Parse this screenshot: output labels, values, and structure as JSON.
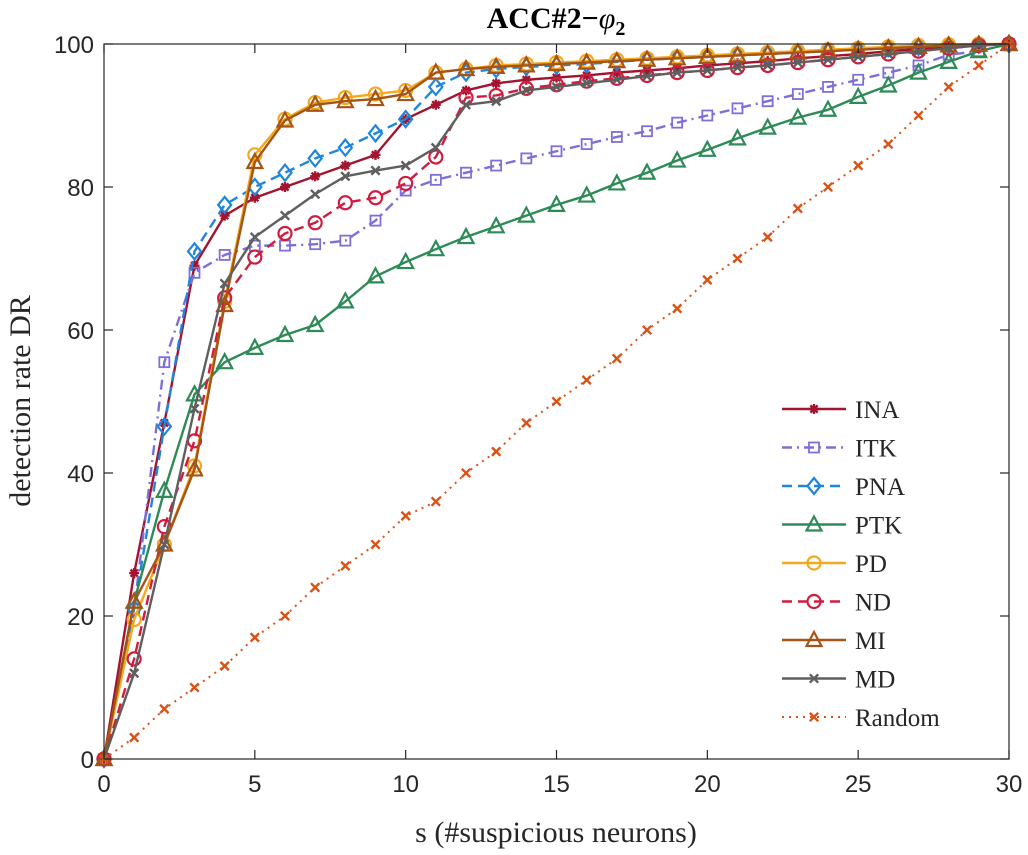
{
  "chart_data": {
    "type": "line",
    "title": "ACC#2−",
    "title_symbol": "φ",
    "title_subscript": "2",
    "xlabel": "s (#suspicious neurons)",
    "ylabel": "detection rate DR",
    "xlim": [
      0,
      30
    ],
    "ylim": [
      0,
      100
    ],
    "xticks": [
      0,
      5,
      10,
      15,
      20,
      25,
      30
    ],
    "yticks": [
      0,
      20,
      40,
      60,
      80,
      100
    ],
    "grid": false,
    "legend_position": "bottom-right",
    "x": [
      0,
      1,
      2,
      3,
      4,
      5,
      6,
      7,
      8,
      9,
      10,
      11,
      12,
      13,
      14,
      15,
      16,
      17,
      18,
      19,
      20,
      21,
      22,
      23,
      24,
      25,
      26,
      27,
      28,
      29,
      30
    ],
    "series": [
      {
        "name": "INA",
        "color": "#A2142F",
        "dash": "solid",
        "marker": "asterisk",
        "values": [
          0,
          26,
          47,
          69,
          76,
          78.5,
          80,
          81.5,
          83,
          84.5,
          89.5,
          91.5,
          93.5,
          94.5,
          95,
          95.3,
          95.6,
          96,
          96.3,
          96.6,
          97,
          97.3,
          97.6,
          98,
          98.3,
          98.6,
          99,
          99.3,
          99.6,
          99.8,
          100
        ]
      },
      {
        "name": "ITK",
        "color": "#7E6FD8",
        "dash": "dashdot",
        "marker": "square",
        "values": [
          0,
          21,
          55.5,
          68,
          70.5,
          71.8,
          71.8,
          72,
          72.5,
          75.3,
          79.5,
          81,
          82,
          83,
          84,
          85,
          86,
          87,
          87.8,
          89,
          90,
          91,
          92,
          93,
          94,
          95,
          96,
          97,
          98.5,
          99,
          100
        ]
      },
      {
        "name": "PNA",
        "color": "#1F86DC",
        "dash": "dash",
        "marker": "diamond",
        "values": [
          0,
          21,
          46.5,
          71,
          77.5,
          80,
          82,
          84,
          85.5,
          87.5,
          89.5,
          94,
          96,
          96.5,
          96.8,
          97,
          97.2,
          97.5,
          97.8,
          98,
          98.2,
          98.4,
          98.6,
          98.8,
          99,
          99.2,
          99.4,
          99.6,
          99.8,
          99.9,
          100
        ]
      },
      {
        "name": "PTK",
        "color": "#2E8B57",
        "dash": "solid",
        "marker": "triangle",
        "values": [
          0,
          22,
          37.5,
          51,
          55.5,
          57.5,
          59.3,
          60.7,
          64,
          67.5,
          69.5,
          71.3,
          73,
          74.5,
          76,
          77.5,
          78.8,
          80.5,
          82,
          83.7,
          85.2,
          86.8,
          88.3,
          89.7,
          90.8,
          92.6,
          94.2,
          96,
          97.5,
          99,
          100
        ]
      },
      {
        "name": "PD",
        "color": "#F4A81D",
        "dash": "solid",
        "marker": "circle",
        "values": [
          0,
          19.5,
          30,
          41,
          64,
          84.5,
          89.5,
          91.8,
          92.5,
          93,
          93.5,
          96,
          96.5,
          97,
          97.2,
          97.4,
          97.6,
          97.8,
          98,
          98.2,
          98.4,
          98.6,
          98.8,
          99,
          99.2,
          99.4,
          99.6,
          99.8,
          99.9,
          100,
          100
        ]
      },
      {
        "name": "ND",
        "color": "#D01C3F",
        "dash": "dash",
        "marker": "circle",
        "values": [
          0,
          14,
          32.5,
          44.5,
          64.5,
          70.2,
          73.5,
          75,
          77.8,
          78.5,
          80.5,
          84.2,
          92.5,
          92.8,
          93.8,
          94.3,
          94.8,
          95.2,
          95.6,
          96,
          96.3,
          96.7,
          97,
          97.4,
          97.8,
          98.2,
          98.6,
          99,
          99.4,
          99.8,
          100
        ]
      },
      {
        "name": "MI",
        "color": "#A65416",
        "dash": "solid",
        "marker": "triangle",
        "values": [
          0,
          22,
          30,
          40.5,
          63.5,
          83.5,
          89.3,
          91.5,
          92,
          92.3,
          93,
          96,
          96.5,
          96.8,
          97,
          97.2,
          97.4,
          97.6,
          97.8,
          98,
          98.2,
          98.4,
          98.6,
          98.8,
          99,
          99.2,
          99.4,
          99.6,
          99.8,
          99.9,
          100
        ]
      },
      {
        "name": "MD",
        "color": "#5F5F5F",
        "dash": "solid",
        "marker": "x",
        "values": [
          0,
          12,
          30,
          49,
          66.5,
          73,
          76,
          79,
          81.5,
          82.3,
          83,
          85.5,
          91.5,
          92,
          93.5,
          94,
          94.5,
          95,
          95.5,
          96,
          96.3,
          96.7,
          97,
          97.4,
          97.8,
          98.2,
          98.6,
          99,
          99.4,
          99.8,
          100
        ]
      },
      {
        "name": "Random",
        "color": "#D95319",
        "dash": "dot",
        "marker": "x",
        "values": [
          0,
          3,
          7,
          10,
          13,
          17,
          20,
          24,
          27,
          30,
          34,
          36,
          40,
          43,
          47,
          50,
          53,
          56,
          60,
          63,
          67,
          70,
          73,
          77,
          80,
          83,
          86,
          90,
          94,
          97,
          100
        ]
      }
    ]
  }
}
